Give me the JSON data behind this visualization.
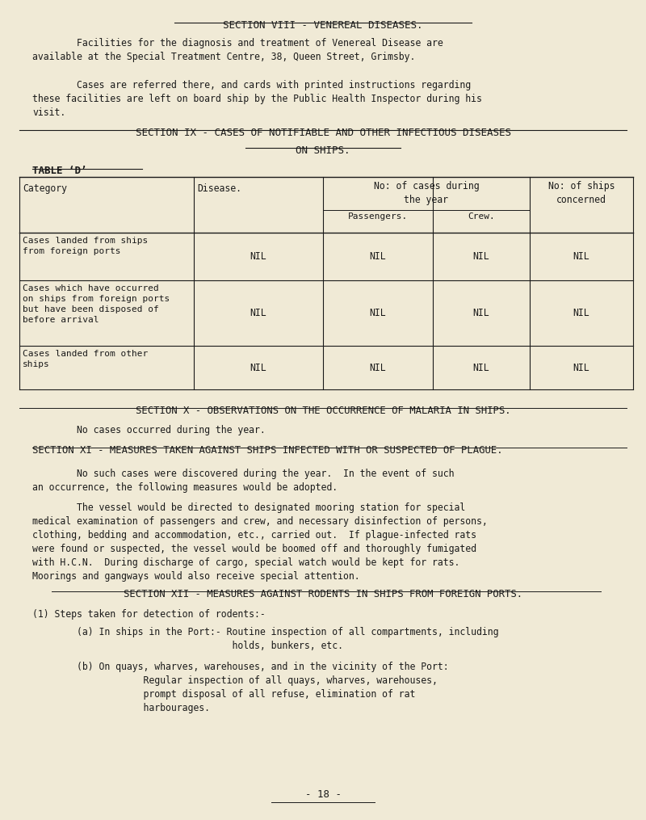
{
  "bg_color": "#f0ead6",
  "text_color": "#1a1a1a",
  "page_width": 8.0,
  "page_height": 10.15,
  "dpi": 100,
  "content": {
    "section8_title": "SECTION VIII - VENEREAL DISEASES.",
    "section8_para1": "        Facilities for the diagnosis and treatment of Venereal Disease are\navailable at the Special Treatment Centre, 38, Queen Street, Grimsby.",
    "section8_para2": "        Cases are referred there, and cards with printed instructions regarding\nthese facilities are left on board ship by the Public Health Inspector during his\nvisit.",
    "table_rows": [
      [
        "Cases landed from ships\nfrom foreign ports",
        "NIL",
        "NIL",
        "NIL",
        "NIL"
      ],
      [
        "Cases which have occurred\non ships from foreign ports\nbut have been disposed of\nbefore arrival",
        "NIL",
        "NIL",
        "NIL",
        "NIL"
      ],
      [
        "Cases landed from other\nships",
        "NIL",
        "NIL",
        "NIL",
        "NIL"
      ]
    ],
    "section10_title": "SECTION X - OBSERVATIONS ON THE OCCURRENCE OF MALARIA IN SHIPS.",
    "section10_para": "        No cases occurred during the year.",
    "section11_title": "SECTION XI - MEASURES TAKEN AGAINST SHIPS INFECTED WITH OR SUSPECTED OF PLAGUE.",
    "section11_para1": "        No such cases were discovered during the year.  In the event of such\nan occurrence, the following measures would be adopted.",
    "section11_para2": "        The vessel would be directed to designated mooring station for special\nmedical examination of passengers and crew, and necessary disinfection of persons,\nclothing, bedding and accommodation, etc., carried out.  If plague-infected rats\nwere found or suspected, the vessel would be boomed off and thoroughly fumigated\nwith H.C.N.  During discharge of cargo, special watch would be kept for rats.\nMoorings and gangways would also receive special attention.",
    "section12_title": "SECTION XII - MEASURES AGAINST RODENTS IN SHIPS FROM FOREIGN PORTS.",
    "section12_para1": "(1) Steps taken for detection of rodents:-",
    "section12_para2": "        (a) In ships in the Port:- Routine inspection of all compartments, including\n                                    holds, bunkers, etc.",
    "section12_para3": "        (b) On quays, wharves, warehouses, and in the vicinity of the Port:\n                    Regular inspection of all quays, wharves, warehouses,\n                    prompt disposal of all refuse, elimination of rat\n                    harbourages.",
    "page_number": "- 18 -"
  }
}
